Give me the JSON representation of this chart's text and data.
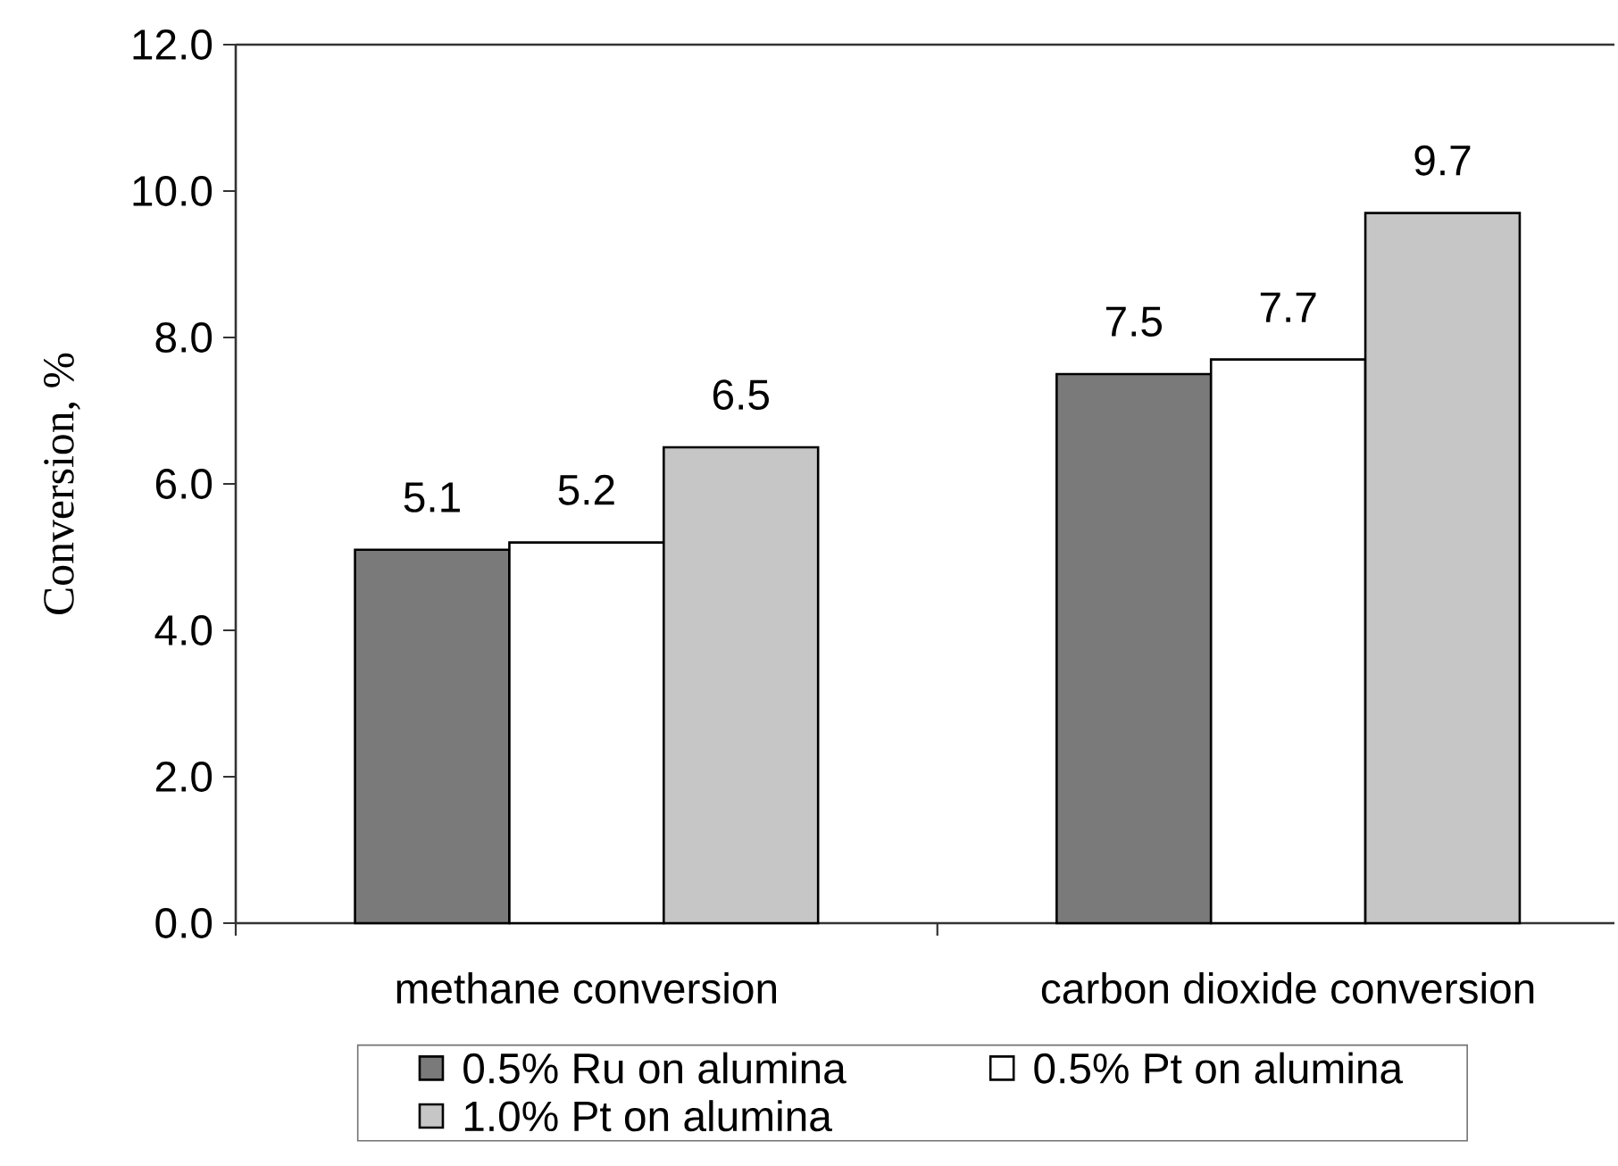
{
  "chart_data": {
    "type": "bar",
    "ylabel": "Conversion, %",
    "categories": [
      "methane conversion",
      "carbon dioxide conversion"
    ],
    "series": [
      {
        "name": "0.5% Ru on alumina",
        "color": "#7a7a7a",
        "values": [
          5.1,
          7.5
        ]
      },
      {
        "name": "0.5% Pt on alumina",
        "color": "#ffffff",
        "values": [
          5.2,
          7.7
        ]
      },
      {
        "name": "1.0% Pt on alumina",
        "color": "#c6c6c6",
        "values": [
          6.5,
          9.7
        ]
      }
    ],
    "ylim": [
      0,
      12
    ],
    "yticks": [
      {
        "value": 0,
        "label": "0.0"
      },
      {
        "value": 2,
        "label": "2.0"
      },
      {
        "value": 4,
        "label": "4.0"
      },
      {
        "value": 6,
        "label": "6.0"
      },
      {
        "value": 8,
        "label": "8.0"
      },
      {
        "value": 10,
        "label": "10.0"
      },
      {
        "value": 12,
        "label": "12.0"
      }
    ],
    "data_labels": true,
    "legend": "bottom"
  }
}
